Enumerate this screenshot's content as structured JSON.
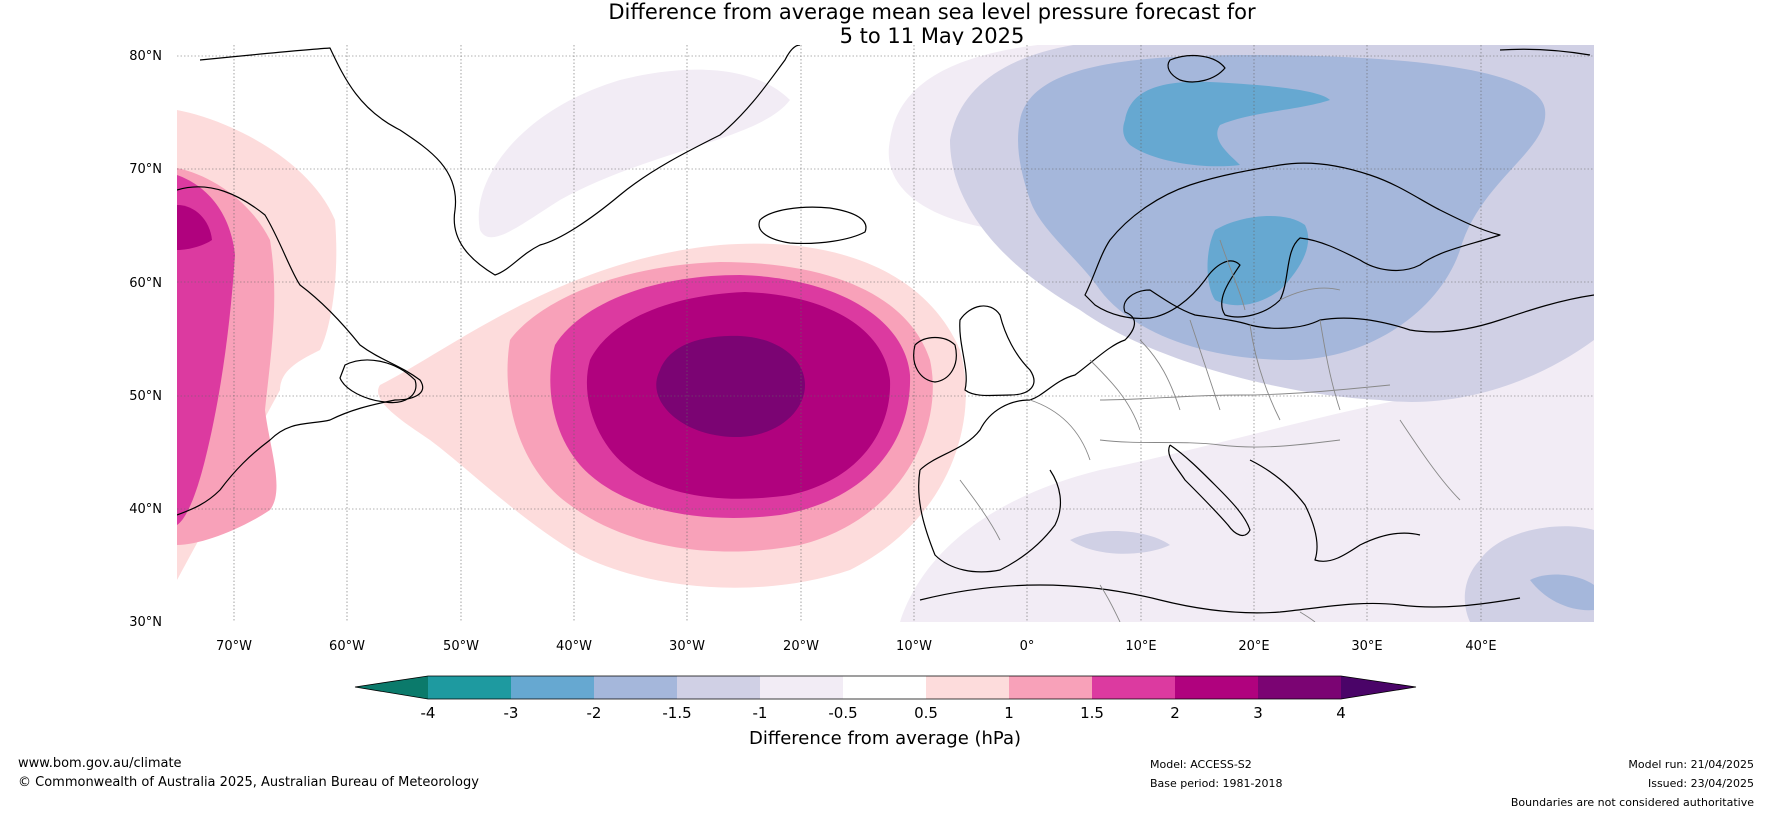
{
  "title": {
    "line1": "Difference from average mean sea level pressure forecast for",
    "line2": "5 to 11 May 2025"
  },
  "map": {
    "lat_labels": [
      "80°N",
      "70°N",
      "60°N",
      "50°N",
      "40°N",
      "30°N"
    ],
    "lon_labels": [
      "70°W",
      "60°W",
      "50°W",
      "40°W",
      "30°W",
      "20°W",
      "10°W",
      "0°",
      "10°E",
      "20°E",
      "30°E",
      "40°E"
    ],
    "lat_range": [
      30,
      81
    ],
    "lon_range": [
      -75,
      50
    ]
  },
  "colorbar": {
    "title": "Difference from average (hPa)",
    "tick_labels": [
      "-4",
      "-3",
      "-2",
      "-1.5",
      "-1",
      "-0.5",
      "0.5",
      "1",
      "1.5",
      "2",
      "3",
      "4"
    ],
    "colors": [
      "#0b7a6b",
      "#1e9aa0",
      "#66a8d1",
      "#a5b7db",
      "#d0d0e5",
      "#f2ecf5",
      "#ffffff",
      "#fddcdc",
      "#f8a1b9",
      "#dc3aa0",
      "#b0027e",
      "#7b0473",
      "#4a0468"
    ]
  },
  "footer": {
    "url": "www.bom.gov.au/climate",
    "copyright": "© Commonwealth of Australia 2025, Australian Bureau of Meteorology",
    "model": "Model: ACCESS-S2",
    "base_period": "Base period: 1981-2018",
    "model_run": "Model run: 21/04/2025",
    "issued": "Issued: 23/04/2025",
    "boundaries": "Boundaries are not considered authoritative"
  }
}
